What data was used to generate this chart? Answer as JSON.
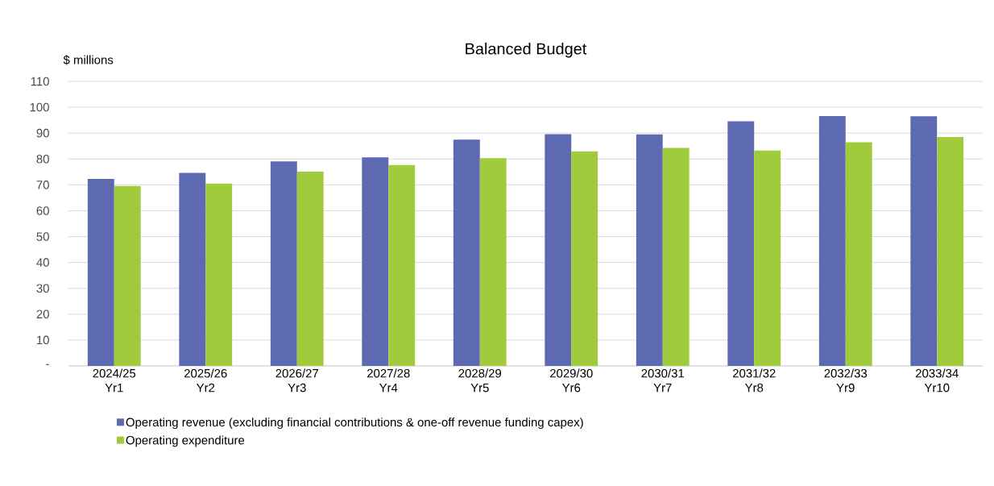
{
  "chart_data": {
    "type": "bar",
    "title": "Balanced Budget",
    "ylabel": "$ millions",
    "categories": [
      "2024/25 Yr1",
      "2025/26 Yr2",
      "2026/27 Yr3",
      "2027/28 Yr4",
      "2028/29 Yr5",
      "2029/30 Yr6",
      "2030/31 Yr7",
      "2031/32 Yr8",
      "2032/33 Yr9",
      "2033/34 Yr10"
    ],
    "series": [
      {
        "name": "Operating revenue (excluding financial contributions & one-off revenue funding capex)",
        "color": "#5d69b1",
        "values": [
          72.3,
          74.6,
          79.1,
          80.6,
          87.5,
          89.6,
          89.5,
          94.6,
          96.6,
          96.5
        ]
      },
      {
        "name": "Operating expenditure",
        "color": "#a0cb3c",
        "values": [
          69.6,
          70.5,
          75.1,
          77.7,
          80.3,
          83.0,
          84.3,
          83.3,
          86.5,
          88.5
        ]
      }
    ],
    "ylim": [
      0,
      110
    ],
    "yticks": [
      {
        "value": 0,
        "label": "-"
      },
      10,
      20,
      30,
      40,
      50,
      60,
      70,
      80,
      90,
      100,
      110
    ],
    "grid": "y",
    "legend": "bottom"
  }
}
